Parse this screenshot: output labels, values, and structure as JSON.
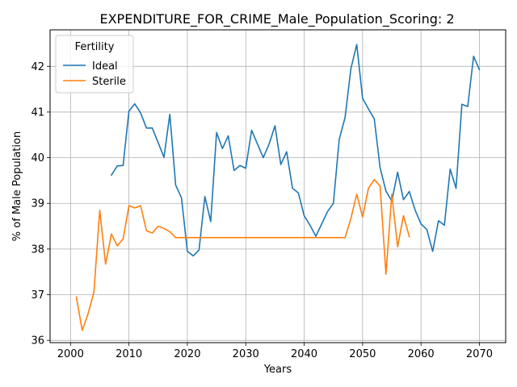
{
  "chart_data": {
    "type": "line",
    "title": "EXPENDITURE_FOR_CRIME_Male_Population_Scoring: 2",
    "xlabel": "Years",
    "ylabel": "% of Male Population",
    "xlim": [
      1996.5,
      2074.5
    ],
    "ylim": [
      35.95,
      42.8
    ],
    "xticks": [
      2000,
      2010,
      2020,
      2030,
      2040,
      2050,
      2060,
      2070
    ],
    "xtick_labels": [
      "2000",
      "2010",
      "2020",
      "2030",
      "2040",
      "2050",
      "2060",
      "2070"
    ],
    "yticks": [
      36,
      37,
      38,
      39,
      40,
      41,
      42
    ],
    "ytick_labels": [
      "36",
      "37",
      "38",
      "39",
      "40",
      "41",
      "42"
    ],
    "grid": true,
    "legend": {
      "title": "Fertility",
      "placement": "top-left"
    },
    "series": [
      {
        "name": "Ideal",
        "color": "#1f77b4",
        "x": [
          2007,
          2008,
          2009,
          2010,
          2011,
          2012,
          2013,
          2014,
          2015,
          2016,
          2017,
          2018,
          2019,
          2020,
          2021,
          2022,
          2023,
          2024,
          2025,
          2026,
          2027,
          2028,
          2029,
          2030,
          2031,
          2032,
          2033,
          2034,
          2035,
          2036,
          2037,
          2038,
          2039,
          2040,
          2041,
          2042,
          2043,
          2044,
          2045,
          2046,
          2047,
          2048,
          2049,
          2050,
          2051,
          2052,
          2053,
          2054,
          2055,
          2056,
          2057,
          2058,
          2059,
          2060,
          2061,
          2062,
          2063,
          2064,
          2065,
          2066,
          2067,
          2068,
          2069,
          2070
        ],
        "y": [
          39.62,
          39.82,
          39.83,
          41.02,
          41.18,
          40.98,
          40.65,
          40.65,
          40.33,
          40.01,
          40.95,
          39.4,
          39.12,
          37.95,
          37.85,
          37.98,
          39.15,
          38.6,
          40.55,
          40.2,
          40.48,
          39.72,
          39.83,
          39.77,
          40.6,
          40.3,
          40.0,
          40.3,
          40.7,
          39.85,
          40.13,
          39.33,
          39.23,
          38.73,
          38.52,
          38.28,
          38.55,
          38.82,
          39.0,
          40.4,
          40.88,
          41.95,
          42.48,
          41.3,
          41.07,
          40.85,
          39.78,
          39.27,
          39.05,
          39.68,
          39.08,
          39.26,
          38.85,
          38.55,
          38.43,
          37.95,
          38.62,
          38.52,
          39.75,
          39.33,
          41.17,
          41.12,
          42.22,
          41.93
        ]
      },
      {
        "name": "Sterile",
        "color": "#ff7f0e",
        "x": [
          2001,
          2002,
          2003,
          2004,
          2005,
          2006,
          2007,
          2008,
          2009,
          2010,
          2011,
          2012,
          2013,
          2014,
          2015,
          2016,
          2017,
          2018,
          2019,
          2020,
          2021,
          2022,
          2023,
          2024,
          2025,
          2026,
          2027,
          2028,
          2029,
          2030,
          2031,
          2032,
          2033,
          2034,
          2035,
          2036,
          2037,
          2038,
          2039,
          2040,
          2041,
          2042,
          2043,
          2044,
          2045,
          2046,
          2047,
          2048,
          2049,
          2050,
          2051,
          2052,
          2053,
          2054,
          2055,
          2056,
          2057,
          2058
        ],
        "y": [
          36.95,
          36.22,
          36.58,
          37.05,
          38.85,
          37.67,
          38.33,
          38.07,
          38.22,
          38.95,
          38.9,
          38.95,
          38.4,
          38.35,
          38.5,
          38.45,
          38.38,
          38.25,
          38.25,
          38.25,
          38.25,
          38.25,
          38.25,
          38.25,
          38.25,
          38.25,
          38.25,
          38.25,
          38.25,
          38.25,
          38.25,
          38.25,
          38.25,
          38.25,
          38.25,
          38.25,
          38.25,
          38.25,
          38.25,
          38.25,
          38.25,
          38.25,
          38.25,
          38.25,
          38.25,
          38.25,
          38.25,
          38.67,
          39.2,
          38.7,
          39.33,
          39.52,
          39.38,
          37.45,
          39.2,
          38.05,
          38.73,
          38.27
        ]
      }
    ]
  }
}
